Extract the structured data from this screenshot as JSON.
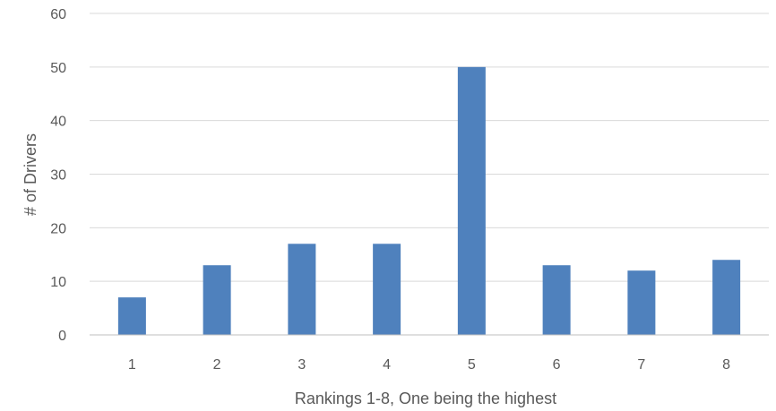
{
  "chart_data": {
    "type": "bar",
    "title": "",
    "xlabel": "Rankings 1-8, One being the highest",
    "ylabel": "# of Drivers",
    "categories": [
      "1",
      "2",
      "3",
      "4",
      "5",
      "6",
      "7",
      "8"
    ],
    "values": [
      7,
      13,
      17,
      17,
      50,
      13,
      12,
      14
    ],
    "ylim": [
      0,
      60
    ],
    "yticks": [
      0,
      10,
      20,
      30,
      40,
      50,
      60
    ],
    "grid": true,
    "legend": "none",
    "colors": {
      "bar": "#4f81bd",
      "grid": "#d9d9d9",
      "axis": "#bfbfbf",
      "text": "#595959"
    }
  }
}
